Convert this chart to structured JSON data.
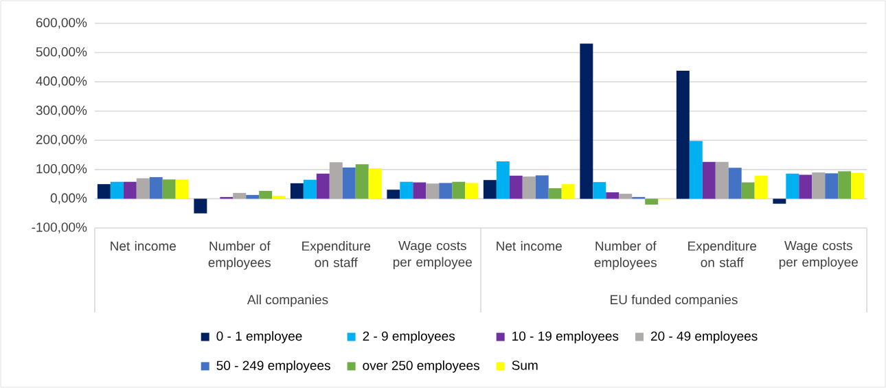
{
  "chart_data": {
    "type": "bar",
    "categories": [
      "Net income",
      "Number of employees",
      "Expenditure on staff",
      "Wage costs per employee",
      "Net income",
      "Number of employees",
      "Expenditure on staff",
      "Wage costs per employee"
    ],
    "annotations": [
      "All companies",
      "EU funded companies"
    ],
    "series": [
      {
        "name": "0 - 1 employee",
        "color": "#002060",
        "values": [
          50,
          -50,
          53,
          31,
          64,
          531,
          438,
          -17
        ]
      },
      {
        "name": "2 - 9 employees",
        "color": "#00b0f0",
        "values": [
          58,
          0,
          65,
          58,
          128,
          57,
          198,
          86
        ]
      },
      {
        "name": "10 - 19 employees",
        "color": "#7030a0",
        "values": [
          58,
          6,
          86,
          56,
          79,
          22,
          126,
          82
        ]
      },
      {
        "name": "20 - 49 employees",
        "color": "#aeaaaa",
        "values": [
          70,
          20,
          125,
          52,
          76,
          17,
          126,
          90
        ]
      },
      {
        "name": "50 - 249 employees",
        "color": "#4472c4",
        "values": [
          74,
          13,
          107,
          54,
          80,
          6,
          106,
          87
        ]
      },
      {
        "name": "over 250 employees",
        "color": "#70ad47",
        "values": [
          66,
          27,
          118,
          58,
          36,
          -20,
          56,
          94
        ]
      },
      {
        "name": "Sum",
        "color": "#ffff00",
        "values": [
          66,
          10,
          104,
          54,
          50,
          -2,
          79,
          88
        ]
      }
    ],
    "ylim": [
      -100,
      600
    ],
    "yticks": [
      {
        "value": -100,
        "label": "-100,00%"
      },
      {
        "value": 0,
        "label": "0,00%"
      },
      {
        "value": 100,
        "label": "100,00%"
      },
      {
        "value": 200,
        "label": "200,00%"
      },
      {
        "value": 300,
        "label": "300,00%"
      },
      {
        "value": 400,
        "label": "400,00%"
      },
      {
        "value": 500,
        "label": "500,00%"
      },
      {
        "value": 600,
        "label": "600,00%"
      }
    ],
    "grid": "y",
    "legend": "bottom"
  }
}
